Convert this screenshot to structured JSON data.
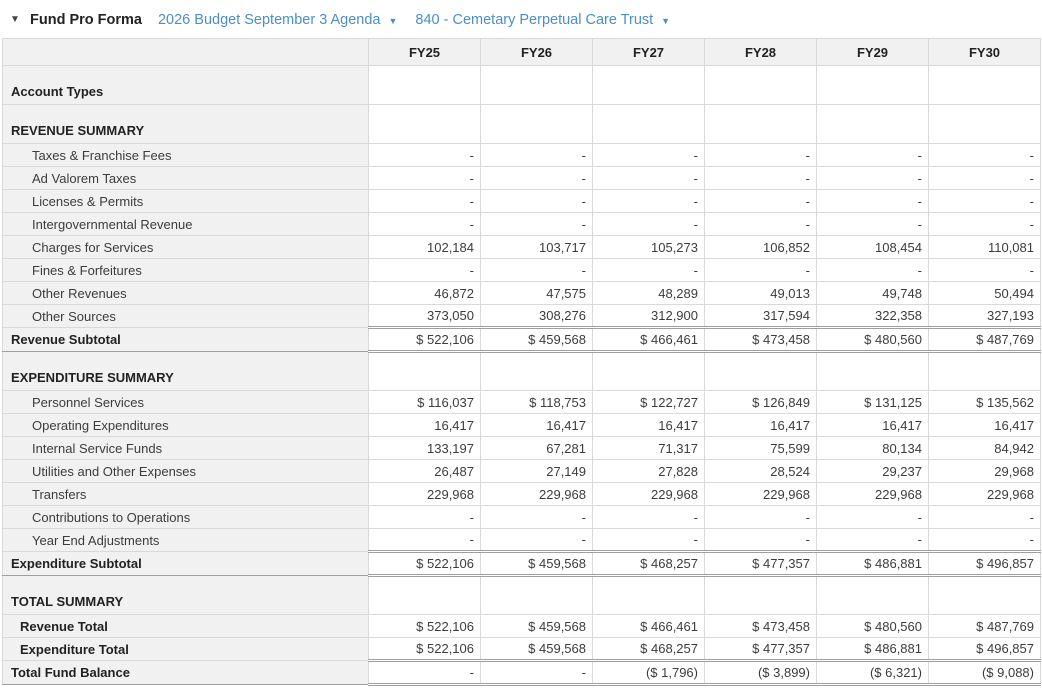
{
  "colors": {
    "link_blue": "#4a8ecb",
    "header_gray": "#f1f1f1",
    "border_light": "#d9d9d9",
    "border_total": "#9e9e9e"
  },
  "header": {
    "collapse_icon": "▼",
    "title": "Fund Pro Forma",
    "budget_selector": {
      "label": "2026 Budget September 3 Agenda",
      "caret": "▼"
    },
    "fund_selector": {
      "label": "840 - Cemetary Perpetual Care Trust",
      "caret": "▼"
    }
  },
  "table": {
    "columns": [
      "FY25",
      "FY26",
      "FY27",
      "FY28",
      "FY29",
      "FY30"
    ],
    "rows": [
      {
        "label": "Account Types",
        "type": "section",
        "values": [
          "",
          "",
          "",
          "",
          "",
          ""
        ]
      },
      {
        "label": "REVENUE SUMMARY",
        "type": "section",
        "values": [
          "",
          "",
          "",
          "",
          "",
          ""
        ]
      },
      {
        "label": "Taxes & Franchise Fees",
        "type": "item",
        "values": [
          "-",
          "-",
          "-",
          "-",
          "-",
          "-"
        ]
      },
      {
        "label": "Ad Valorem Taxes",
        "type": "item",
        "values": [
          "-",
          "-",
          "-",
          "-",
          "-",
          "-"
        ]
      },
      {
        "label": "Licenses & Permits",
        "type": "item",
        "values": [
          "-",
          "-",
          "-",
          "-",
          "-",
          "-"
        ]
      },
      {
        "label": "Intergovernmental Revenue",
        "type": "item",
        "values": [
          "-",
          "-",
          "-",
          "-",
          "-",
          "-"
        ]
      },
      {
        "label": "Charges for Services",
        "type": "item",
        "values": [
          "102,184",
          "103,717",
          "105,273",
          "106,852",
          "108,454",
          "110,081"
        ]
      },
      {
        "label": "Fines & Forfeitures",
        "type": "item",
        "values": [
          "-",
          "-",
          "-",
          "-",
          "-",
          "-"
        ]
      },
      {
        "label": "Other Revenues",
        "type": "item",
        "values": [
          "46,872",
          "47,575",
          "48,289",
          "49,013",
          "49,748",
          "50,494"
        ]
      },
      {
        "label": "Other Sources",
        "type": "item",
        "values": [
          "373,050",
          "308,276",
          "312,900",
          "317,594",
          "322,358",
          "327,193"
        ]
      },
      {
        "label": "Revenue Subtotal",
        "type": "subtotal",
        "values": [
          "$ 522,106",
          "$ 459,568",
          "$ 466,461",
          "$ 473,458",
          "$ 480,560",
          "$ 487,769"
        ]
      },
      {
        "label": "EXPENDITURE SUMMARY",
        "type": "section",
        "values": [
          "",
          "",
          "",
          "",
          "",
          ""
        ]
      },
      {
        "label": "Personnel Services",
        "type": "item",
        "values": [
          "$ 116,037",
          "$ 118,753",
          "$ 122,727",
          "$ 126,849",
          "$ 131,125",
          "$ 135,562"
        ]
      },
      {
        "label": "Operating Expenditures",
        "type": "item",
        "values": [
          "16,417",
          "16,417",
          "16,417",
          "16,417",
          "16,417",
          "16,417"
        ]
      },
      {
        "label": "Internal Service Funds",
        "type": "item",
        "values": [
          "133,197",
          "67,281",
          "71,317",
          "75,599",
          "80,134",
          "84,942"
        ]
      },
      {
        "label": "Utilities and Other Expenses",
        "type": "item",
        "values": [
          "26,487",
          "27,149",
          "27,828",
          "28,524",
          "29,237",
          "29,968"
        ]
      },
      {
        "label": "Transfers",
        "type": "item",
        "values": [
          "229,968",
          "229,968",
          "229,968",
          "229,968",
          "229,968",
          "229,968"
        ]
      },
      {
        "label": "Contributions to Operations",
        "type": "item",
        "values": [
          "-",
          "-",
          "-",
          "-",
          "-",
          "-"
        ]
      },
      {
        "label": "Year End Adjustments",
        "type": "item",
        "values": [
          "-",
          "-",
          "-",
          "-",
          "-",
          "-"
        ]
      },
      {
        "label": "Expenditure Subtotal",
        "type": "subtotal",
        "values": [
          "$ 522,106",
          "$ 459,568",
          "$ 468,257",
          "$ 477,357",
          "$ 486,881",
          "$ 496,857"
        ]
      },
      {
        "label": "TOTAL SUMMARY",
        "type": "section",
        "values": [
          "",
          "",
          "",
          "",
          "",
          ""
        ]
      },
      {
        "label": "Revenue Total",
        "type": "totalitem",
        "values": [
          "$ 522,106",
          "$ 459,568",
          "$ 466,461",
          "$ 473,458",
          "$ 480,560",
          "$ 487,769"
        ]
      },
      {
        "label": "Expenditure Total",
        "type": "totalitem",
        "values": [
          "$ 522,106",
          "$ 459,568",
          "$ 468,257",
          "$ 477,357",
          "$ 486,881",
          "$ 496,857"
        ]
      },
      {
        "label": "Total Fund Balance",
        "type": "grand",
        "values": [
          "-",
          "-",
          "($ 1,796)",
          "($ 3,899)",
          "($ 6,321)",
          "($ 9,088)"
        ]
      }
    ]
  }
}
